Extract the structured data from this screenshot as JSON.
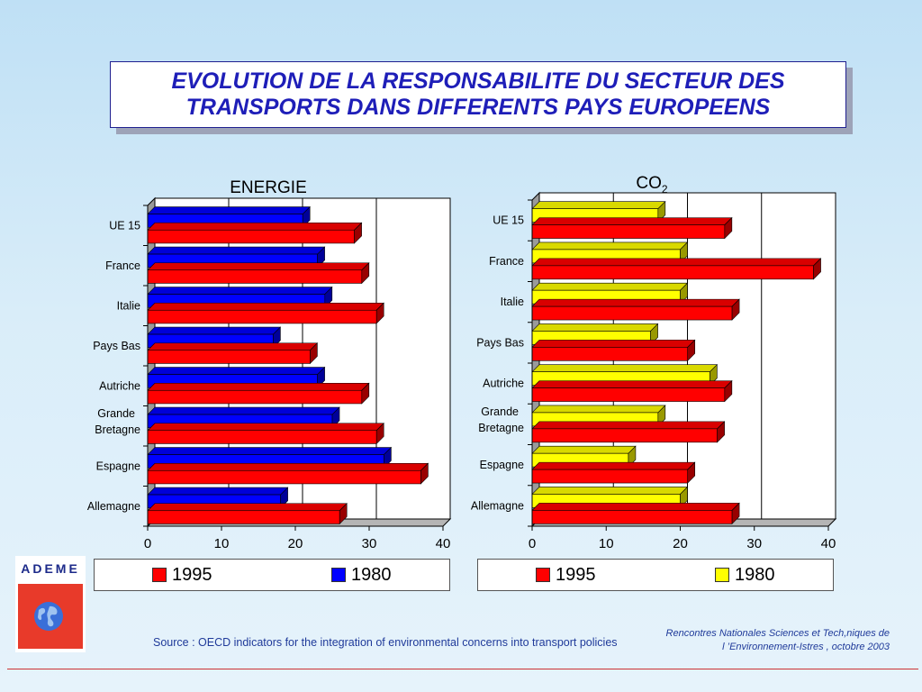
{
  "title": {
    "line1": "EVOLUTION DE LA RESPONSABILITE DU SECTEUR DES",
    "line2": "TRANSPORTS DANS DIFFERENTS PAYS EUROPEENS"
  },
  "logo": {
    "text": "ADEME",
    "icon": "globe-icon"
  },
  "source": "Source : OECD indicators for the integration of environmental concerns into transport policies",
  "footer": {
    "line1": "Rencontres Nationales Sciences et Tech,niques de",
    "line2": "l ’Environnement-Istres , octobre  2003"
  },
  "chart_data": [
    {
      "type": "bar",
      "orientation": "horizontal",
      "title": "ENERGIE",
      "categories": [
        "UE 15",
        "France",
        "Italie",
        "Pays Bas",
        "Autriche",
        "Grande Bretagne",
        "Espagne",
        "Allemagne"
      ],
      "category_lines": [
        [
          "UE 15"
        ],
        [
          "France"
        ],
        [
          "Italie"
        ],
        [
          "Pays Bas"
        ],
        [
          "Autriche"
        ],
        [
          "Grande",
          "Bretagne"
        ],
        [
          "Espagne"
        ],
        [
          "Allemagne"
        ]
      ],
      "series": [
        {
          "name": "1995",
          "color": "#ff0000",
          "values": [
            28,
            29,
            31,
            22,
            29,
            31,
            37,
            26
          ]
        },
        {
          "name": "1980",
          "color": "#0000ff",
          "values": [
            21,
            23,
            24,
            17,
            23,
            25,
            32,
            18
          ]
        }
      ],
      "xlim": [
        0,
        40
      ],
      "xticks": [
        "0",
        "10",
        "20",
        "30",
        "40"
      ],
      "grid": true,
      "legend": [
        "1995",
        "1980"
      ]
    },
    {
      "type": "bar",
      "orientation": "horizontal",
      "title": "CO",
      "title_sub": "2",
      "categories": [
        "UE 15",
        "France",
        "Italie",
        "Pays Bas",
        "Autriche",
        "Grande Bretagne",
        "Espagne",
        "Allemagne"
      ],
      "category_lines": [
        [
          "UE 15"
        ],
        [
          "France"
        ],
        [
          "Italie"
        ],
        [
          "Pays Bas"
        ],
        [
          "Autriche"
        ],
        [
          "Grande",
          "Bretagne"
        ],
        [
          "Espagne"
        ],
        [
          "Allemagne"
        ]
      ],
      "series": [
        {
          "name": "1995",
          "color": "#ff0000",
          "values": [
            26,
            38,
            27,
            21,
            26,
            25,
            21,
            27
          ]
        },
        {
          "name": "1980",
          "color": "#ffff00",
          "values": [
            17,
            20,
            20,
            16,
            24,
            17,
            13,
            20
          ]
        }
      ],
      "xlim": [
        0,
        40
      ],
      "xticks": [
        "0",
        "10",
        "20",
        "30",
        "40"
      ],
      "grid": true,
      "legend": [
        "1995",
        "1980"
      ]
    }
  ]
}
